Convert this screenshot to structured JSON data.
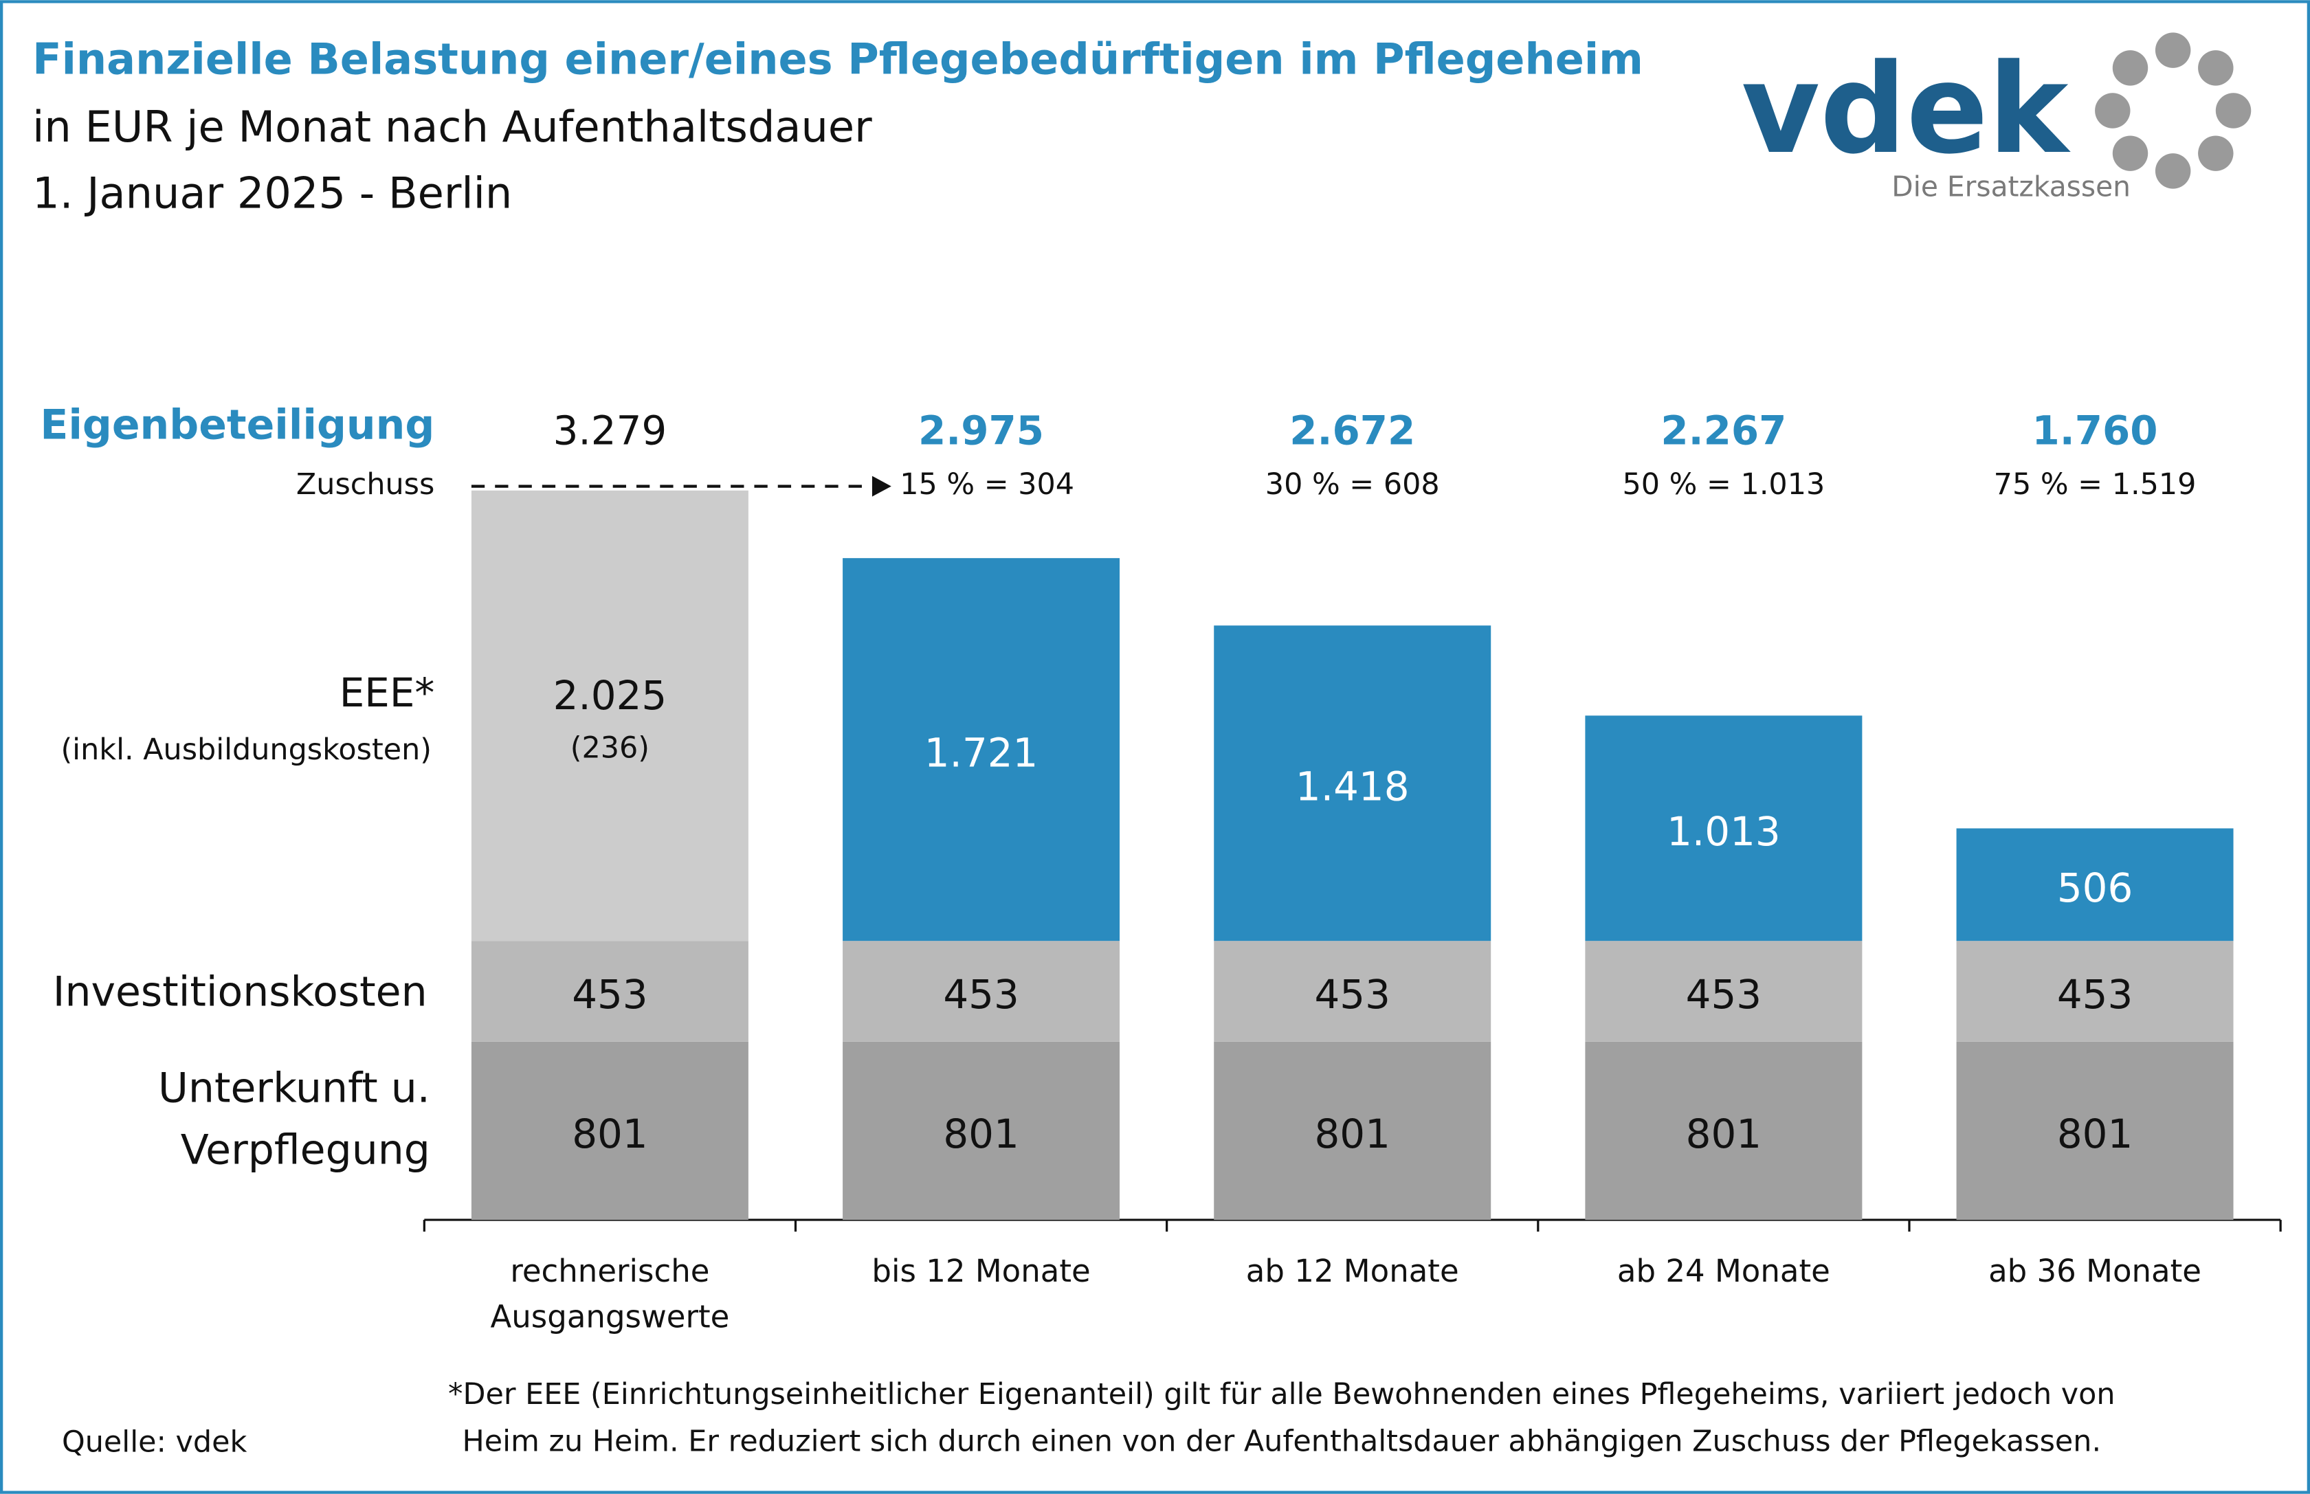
{
  "chart_data": {
    "type": "stacked-bar",
    "title": "Finanzielle Belastung einer/eines Pflegebedürftigen im Pflegeheim",
    "subtitle": "in EUR je Monat nach Aufenthaltsdauer",
    "subtitle2": "1. Januar 2025 - Berlin",
    "categories": [
      "rechnerische Ausgangswerte",
      "bis 12 Monate",
      "ab 12 Monate",
      "ab 24 Monate",
      "ab 36 Monate"
    ],
    "series": [
      {
        "name": "Unterkunft u. Verpflegung",
        "color": "#a0a0a0",
        "values": [
          801,
          801,
          801,
          801,
          801
        ]
      },
      {
        "name": "Investitionskosten",
        "color": "#b9b9b9",
        "values": [
          453,
          453,
          453,
          453,
          453
        ]
      },
      {
        "name": "EEE*",
        "note": "(inkl. Ausbildungskosten)",
        "color": "#2a8bbf",
        "colors": [
          "#cccccc",
          "#2a8bbf",
          "#2a8bbf",
          "#2a8bbf",
          "#2a8bbf"
        ],
        "values": [
          2025,
          1721,
          1418,
          1013,
          506
        ],
        "value_labels": [
          "2.025",
          "1.721",
          "1.418",
          "1.013",
          "506"
        ],
        "sub_values": [
          236,
          null,
          null,
          null,
          null
        ],
        "sub_value_labels": [
          "(236)",
          null,
          null,
          null,
          null
        ]
      }
    ],
    "totals": {
      "label": "Eigenbeteiligung",
      "values": [
        3279,
        2975,
        2672,
        2267,
        1760
      ],
      "value_labels": [
        "3.279",
        "2.975",
        "2.672",
        "2.267",
        "1.760"
      ]
    },
    "zuschuss": {
      "label": "Zuschuss",
      "values": [
        null,
        304,
        608,
        1013,
        1519
      ],
      "value_labels": [
        null,
        "15 % = 304",
        "30 % = 608",
        "50 % = 1.013",
        "75 % = 1.519"
      ]
    }
  },
  "logo": {
    "name": "vdek",
    "tagline": "Die Ersatzkassen"
  },
  "footnote": "*Der EEE (Einrichtungseinheitlicher Eigenanteil) gilt für alle Bewohnenden eines Pflegeheims, variiert jedoch von Heim zu Heim. Er reduziert sich durch einen von der Aufenthaltsdauer abhängigen Zuschuss der Pflegekassen.",
  "source": "Quelle: vdek"
}
